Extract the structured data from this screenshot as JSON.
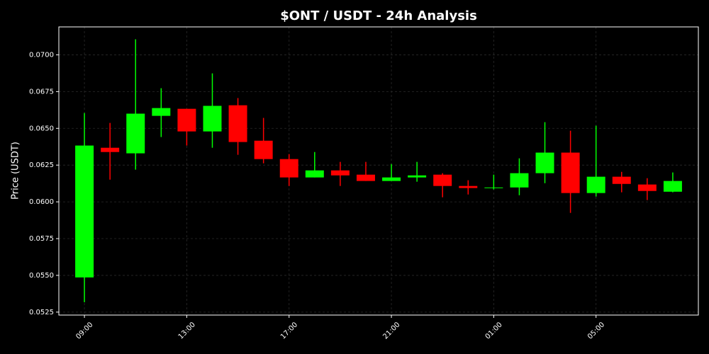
{
  "chart_data": {
    "type": "candlestick",
    "title": "$ONT / USDT - 24h Analysis",
    "y_label": "Price (USDT)",
    "categories": [
      "09:00",
      null,
      null,
      null,
      "13:00",
      null,
      null,
      null,
      "17:00",
      null,
      null,
      null,
      "21:00",
      null,
      null,
      null,
      "01:00",
      null,
      null,
      null,
      "05:00",
      null,
      null,
      null
    ],
    "open": [
      0.05486,
      0.06368,
      0.0633,
      0.06585,
      0.06633,
      0.06479,
      0.06657,
      0.06416,
      0.06291,
      0.06166,
      0.06214,
      0.06185,
      0.06142,
      0.06166,
      0.06185,
      0.06108,
      0.06094,
      0.06098,
      0.06195,
      0.06335,
      0.0606,
      0.06171,
      0.06118,
      0.06069
    ],
    "high": [
      0.06604,
      0.06537,
      0.07106,
      0.06773,
      0.06633,
      0.06874,
      0.06706,
      0.06571,
      0.06325,
      0.06339,
      0.06272,
      0.06272,
      0.06257,
      0.06272,
      0.06195,
      0.06147,
      0.06185,
      0.06296,
      0.06542,
      0.06484,
      0.06518,
      0.06204,
      0.06161,
      0.062
    ],
    "low": [
      0.05317,
      0.06151,
      0.06219,
      0.06441,
      0.06383,
      0.06368,
      0.0632,
      0.06262,
      0.06108,
      0.06166,
      0.06108,
      0.06142,
      0.06142,
      0.06137,
      0.06031,
      0.0605,
      0.06084,
      0.06045,
      0.06127,
      0.05925,
      0.06036,
      0.06065,
      0.06012,
      0.06065
    ],
    "close": [
      0.06383,
      0.06339,
      0.066,
      0.06638,
      0.06479,
      0.06653,
      0.06407,
      0.06291,
      0.06166,
      0.06214,
      0.0618,
      0.06142,
      0.06166,
      0.0618,
      0.06108,
      0.06094,
      0.06098,
      0.06195,
      0.06335,
      0.0606,
      0.06171,
      0.06122,
      0.06074,
      0.06142
    ],
    "up_color": "#00ff00",
    "down_color": "#ff0000",
    "ylim": [
      0.0523,
      0.0719
    ],
    "yticks": [
      0.0525,
      {
        "value": 0.055,
        "label": "0.0550"
      },
      0.0575,
      {
        "value": 0.06,
        "label": "0.0600"
      },
      0.0625,
      {
        "value": 0.065,
        "label": "0.0650"
      },
      0.0675,
      {
        "value": 0.07,
        "label": "0.0700"
      }
    ],
    "grid": true
  }
}
